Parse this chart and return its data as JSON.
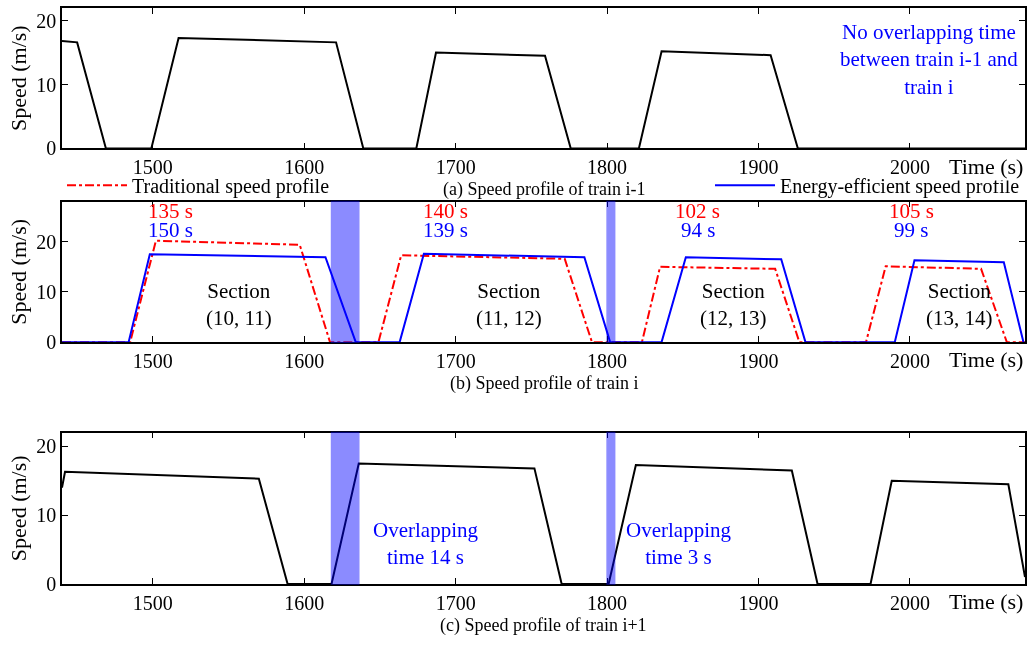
{
  "chart_data": [
    {
      "type": "line",
      "title": "(a) Speed profile of train i-1",
      "xlabel": "Time (s)",
      "ylabel": "Speed (m/s)",
      "xlim": [
        1440,
        2076
      ],
      "xticks": [
        1500,
        1600,
        1700,
        1800,
        1900,
        2000
      ],
      "ylim": [
        0,
        22
      ],
      "yticks": [
        0,
        10,
        20
      ],
      "legend": false,
      "marker": "none",
      "series": [
        {
          "color": "#000000",
          "line_style": "solid",
          "x": [
            1440,
            1450,
            1469,
            1499,
            1517,
            1621,
            1639,
            1674,
            1687,
            1759,
            1776,
            1821,
            1836,
            1908,
            1926,
            2076
          ],
          "values": [
            16.8,
            16.6,
            0,
            0,
            17.3,
            16.6,
            0,
            0,
            15,
            14.5,
            0,
            0,
            15.2,
            14.6,
            0,
            0
          ]
        }
      ],
      "annotations": [
        "No overlapping time\nbetween train i-1 and\ntrain i"
      ]
    },
    {
      "type": "line",
      "title": "(b) Speed profile of train i",
      "xlabel": "Time (s)",
      "ylabel": "Speed (m/s)",
      "xlim": [
        1440,
        2076
      ],
      "xticks": [
        1500,
        1600,
        1700,
        1800,
        1900,
        2000
      ],
      "ylim": [
        0,
        28
      ],
      "yticks": [
        0,
        10,
        20
      ],
      "legend": "top",
      "marker": "none",
      "series": [
        {
          "name": "Traditional speed profile",
          "color": "#ff0000",
          "line_style": "dashdot",
          "x": [
            1440,
            1485,
            1502,
            1597,
            1617,
            1649,
            1664,
            1772,
            1790,
            1823,
            1835,
            1911,
            1927,
            1971,
            1984,
            2047,
            2064,
            2076
          ],
          "values": [
            0,
            0,
            20.2,
            19.4,
            0,
            0,
            17.3,
            16.6,
            0,
            0,
            15,
            14.6,
            0,
            0,
            15.1,
            14.6,
            0,
            0
          ]
        },
        {
          "name": "Energy-efficient speed profile",
          "color": "#0000ff",
          "line_style": "solid",
          "x": [
            1440,
            1484,
            1498,
            1614,
            1634,
            1663,
            1679,
            1785,
            1802,
            1836,
            1852,
            1915,
            1931,
            1990,
            2003,
            2062,
            2075
          ],
          "values": [
            0,
            0,
            17.5,
            16.9,
            0,
            0,
            17.6,
            16.9,
            0,
            0,
            16.9,
            16.5,
            0,
            0,
            16.3,
            15.9,
            0
          ]
        }
      ],
      "bands": [
        {
          "axis": "x",
          "from": 1618,
          "to": 1636,
          "color": "#0000ff"
        },
        {
          "axis": "x",
          "from": 1800,
          "to": 1805,
          "color": "#0000ff"
        }
      ],
      "annotations": [
        "135 s",
        "150 s",
        "140 s",
        "139 s",
        "102 s",
        "94 s",
        "105 s",
        "99 s",
        "Section\n(10, 11)",
        "Section\n(11, 12)",
        "Section\n(12, 13)",
        "Section\n(13, 14)"
      ]
    },
    {
      "type": "line",
      "title": "(c) Speed profile of train i+1",
      "xlabel": "Time (s)",
      "ylabel": "Speed (m/s)",
      "xlim": [
        1440,
        2076
      ],
      "xticks": [
        1500,
        1600,
        1700,
        1800,
        1900,
        2000
      ],
      "ylim": [
        0,
        22
      ],
      "yticks": [
        0,
        10,
        20
      ],
      "legend": false,
      "marker": "none",
      "series": [
        {
          "color": "#000000",
          "line_style": "solid",
          "x": [
            1440,
            1442,
            1570,
            1589,
            1618,
            1636,
            1752,
            1770,
            1801,
            1819,
            1922,
            1939,
            1974,
            1988,
            2065,
            2076
          ],
          "values": [
            14,
            16.3,
            15.3,
            0,
            0,
            17.5,
            16.8,
            0,
            0,
            17.3,
            16.5,
            0,
            0,
            15,
            14.5,
            1
          ]
        }
      ],
      "bands": [
        {
          "axis": "x",
          "from": 1618,
          "to": 1636,
          "color": "#0000ff"
        },
        {
          "axis": "x",
          "from": 1800,
          "to": 1805,
          "color": "#0000ff"
        }
      ],
      "annotations": [
        "Overlapping\ntime 14 s",
        "Overlapping\ntime 3 s"
      ]
    }
  ]
}
